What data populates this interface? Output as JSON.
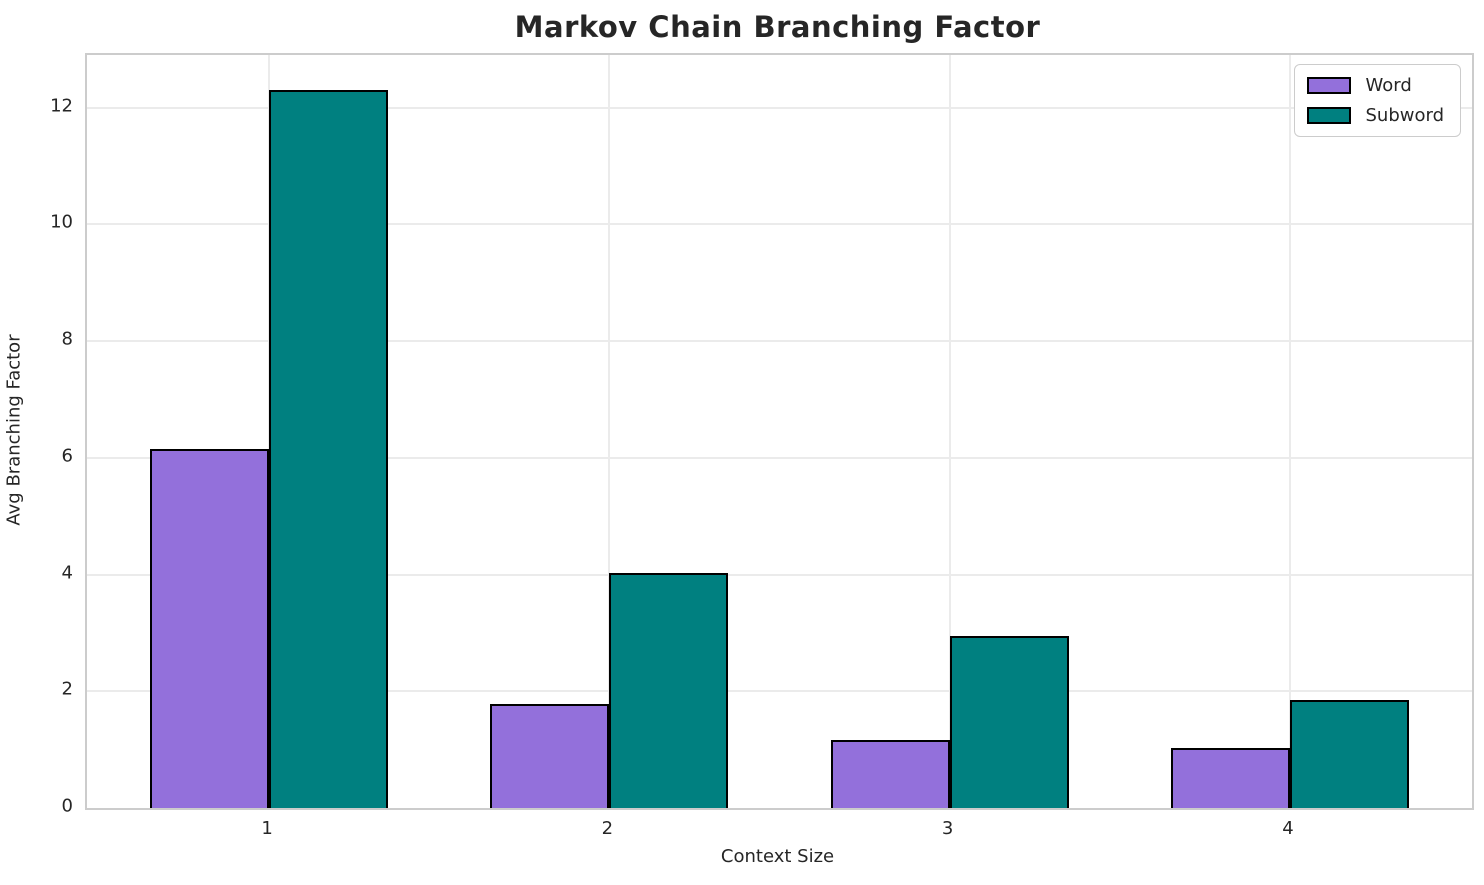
{
  "chart_data": {
    "type": "bar",
    "title": "Markov Chain Branching Factor",
    "xlabel": "Context Size",
    "ylabel": "Avg Branching Factor",
    "categories": [
      "1",
      "2",
      "3",
      "4"
    ],
    "series": [
      {
        "name": "Word",
        "color": "#9370DB",
        "values": [
          6.15,
          1.78,
          1.17,
          1.03
        ]
      },
      {
        "name": "Subword",
        "color": "#008080",
        "values": [
          12.3,
          4.02,
          2.94,
          1.85
        ]
      }
    ],
    "y_ticks": [
      0,
      2,
      4,
      6,
      8,
      10,
      12
    ],
    "ylim": [
      0,
      12.9
    ],
    "xlim": [
      0.465,
      4.535
    ],
    "bar_width_units": 0.35,
    "bar_edge_color": "#000000",
    "grid": true,
    "gridline_color": "#ebebeb",
    "spine_color": "#cccccc",
    "text_color": "#262626",
    "background_color": "#ffffff",
    "legend_position": "upper right"
  }
}
